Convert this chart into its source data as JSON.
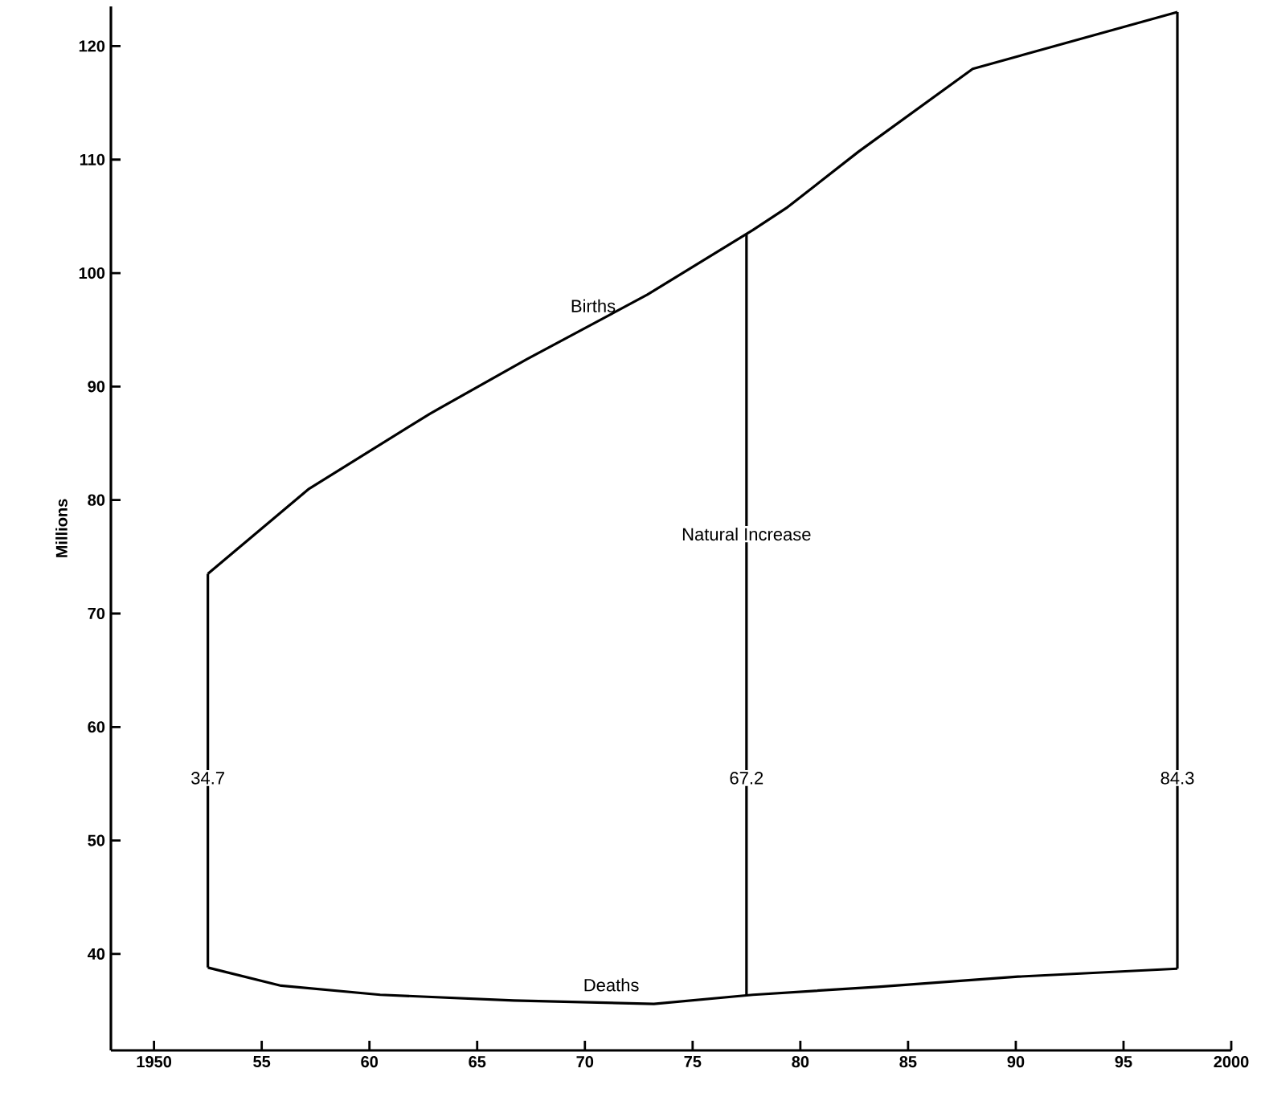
{
  "chart_data": {
    "type": "line",
    "ylabel": "Millions",
    "marker": "none",
    "line_style": "solid",
    "xlim": [
      1948,
      2000
    ],
    "ylim": [
      31.5,
      123.5
    ],
    "xticks": [
      {
        "value": 1950,
        "label": "1950"
      },
      {
        "value": 1955,
        "label": "55"
      },
      {
        "value": 1960,
        "label": "60"
      },
      {
        "value": 1965,
        "label": "65"
      },
      {
        "value": 1970,
        "label": "70"
      },
      {
        "value": 1975,
        "label": "75"
      },
      {
        "value": 1980,
        "label": "80"
      },
      {
        "value": 1985,
        "label": "85"
      },
      {
        "value": 1990,
        "label": "90"
      },
      {
        "value": 1995,
        "label": "95"
      },
      {
        "value": 2000,
        "label": "2000"
      }
    ],
    "yticks": [
      40,
      50,
      60,
      70,
      80,
      90,
      100,
      110,
      120
    ],
    "series": [
      {
        "name": "Births",
        "color": "#000000",
        "x": [
          1952.5,
          1957.2,
          1962.8,
          1967.3,
          1972.9,
          1977.8,
          1979.4,
          1982.7,
          1988.0,
          1997.5
        ],
        "values": [
          73.5,
          81,
          87.6,
          92.4,
          98.1,
          103.8,
          105.8,
          110.7,
          118.0,
          123.0
        ]
      },
      {
        "name": "Deaths",
        "color": "#000000",
        "x": [
          1952.5,
          1955.9,
          1960.5,
          1966.7,
          1973.2,
          1977.8,
          1983.6,
          1990.1,
          1997.5
        ],
        "values": [
          38.8,
          37.2,
          36.4,
          35.9,
          35.6,
          36.4,
          37.1,
          38.0,
          38.7
        ]
      }
    ],
    "ref_lines": [
      {
        "axis": "x",
        "value": 1952.5
      },
      {
        "axis": "x",
        "value": 1977.5
      },
      {
        "axis": "x",
        "value": 1997.5
      }
    ],
    "annotations": [
      {
        "text": "Natural Increase",
        "x": 1977.5,
        "y": 77
      },
      {
        "text": "34.7",
        "x": 1952.5,
        "y": 55.5
      },
      {
        "text": "67.2",
        "x": 1977.5,
        "y": 55.5
      },
      {
        "text": "84.3",
        "x": 1997.5,
        "y": 55.5
      }
    ]
  }
}
